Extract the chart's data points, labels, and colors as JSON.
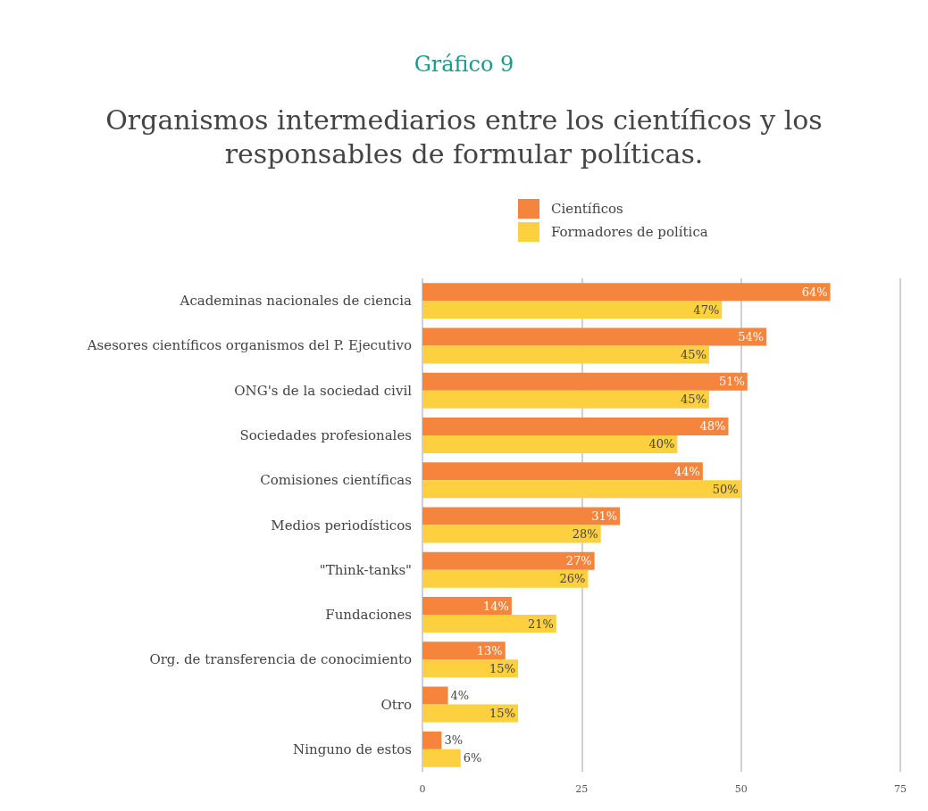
{
  "chart_data": {
    "type": "bar",
    "orientation": "horizontal",
    "title": "Gráfico 9",
    "subtitle": "Organismos intermediarios entre los científicos y los\nresponsables de formular políticas.",
    "categories": [
      "Academinas nacionales de ciencia",
      "Asesores científicos organismos del P. Ejecutivo",
      "ONG's de la sociedad civil",
      "Sociedades profesionales",
      "Comisiones científicas",
      "Medios periodísticos",
      "\"Think-tanks\"",
      "Fundaciones",
      "Org. de transferencia de conocimiento",
      "Otro",
      "Ninguno de estos"
    ],
    "series": [
      {
        "name": "Científicos",
        "color": "#f5843c",
        "values": [
          64,
          54,
          51,
          48,
          44,
          31,
          27,
          14,
          13,
          4,
          3
        ],
        "value_labels": [
          "64%",
          "54%",
          "51%",
          "48%",
          "44%",
          "31%",
          "27%",
          "14%",
          "13%",
          "4%",
          "3%"
        ]
      },
      {
        "name": "Formadores de política",
        "color": "#fcd03e",
        "values": [
          47,
          45,
          45,
          40,
          50,
          28,
          26,
          21,
          15,
          15,
          6
        ],
        "value_labels": [
          "47%",
          "45%",
          "45%",
          "40%",
          "50%",
          "28%",
          "26%",
          "21%",
          "15%",
          "15%",
          "6%"
        ]
      }
    ],
    "xlim": [
      0,
      75
    ],
    "xticks": [
      0,
      25,
      50,
      75
    ],
    "grid": "x",
    "legend": "top"
  }
}
